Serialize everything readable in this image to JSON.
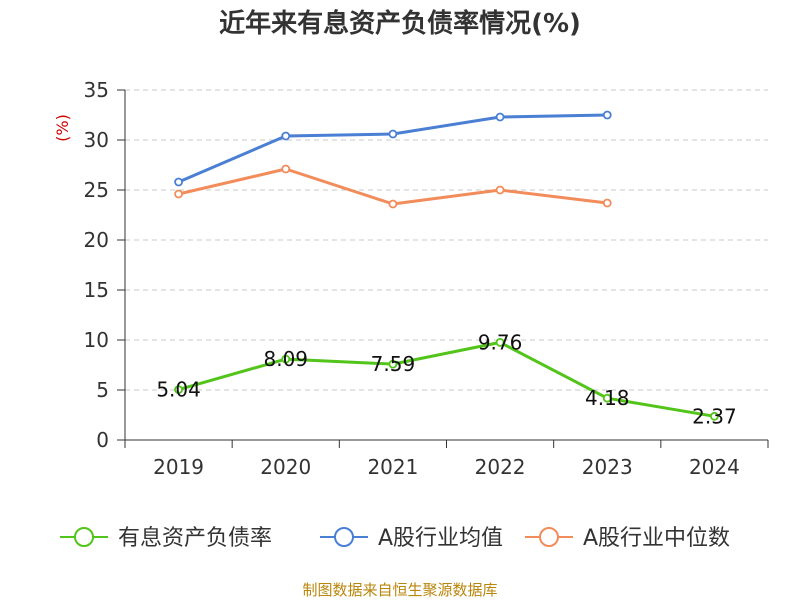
{
  "chart_data": {
    "type": "line",
    "title": "近年来有息资产负债率情况(%)",
    "ylabel": "(%)",
    "xlabel": "",
    "categories": [
      "2019",
      "2020",
      "2021",
      "2022",
      "2023",
      "2024"
    ],
    "ylim": [
      0,
      35
    ],
    "yticks": [
      0,
      5,
      10,
      15,
      20,
      25,
      30,
      35
    ],
    "grid": true,
    "legend_position": "bottom",
    "series": [
      {
        "name": "有息资产负债率",
        "color": "#52c41a",
        "values": [
          5.04,
          8.09,
          7.59,
          9.76,
          4.18,
          2.37
        ],
        "labels": [
          "5.04",
          "8.09",
          "7.59",
          "9.76",
          "4.18",
          "2.37"
        ]
      },
      {
        "name": "A股行业均值",
        "color": "#4a7fd4",
        "values": [
          25.8,
          30.4,
          30.6,
          32.3,
          32.5,
          null
        ]
      },
      {
        "name": "A股行业中位数",
        "color": "#f28c5a",
        "values": [
          24.6,
          27.1,
          23.6,
          25.0,
          23.7,
          null
        ]
      }
    ],
    "source": "制图数据来自恒生聚源数据库"
  }
}
